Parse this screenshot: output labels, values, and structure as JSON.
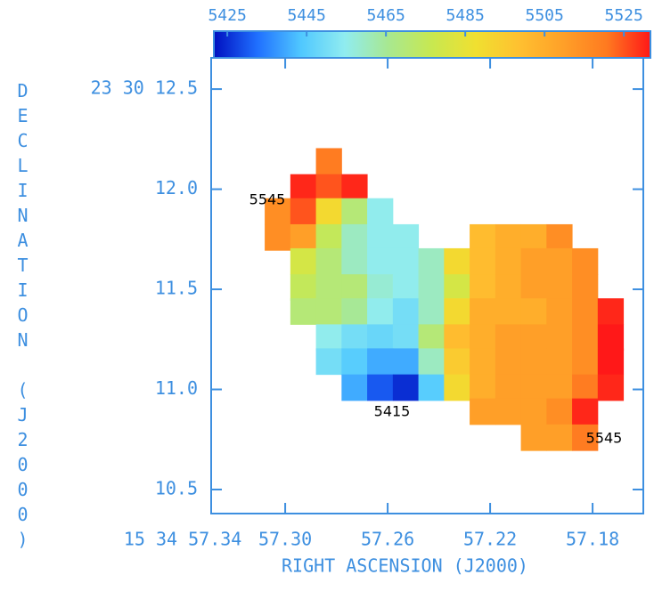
{
  "chart_data": {
    "type": "heatmap",
    "xlabel": "RIGHT ASCENSION (J2000)",
    "ylabel": "DECLINATION (J2000)",
    "xlim": [
      57.3289,
      57.1602
    ],
    "ylim": [
      10.38,
      12.656
    ],
    "xticks": [
      {
        "value": 57.34,
        "label": "15 34 57.34"
      },
      {
        "value": 57.3,
        "label": "57.30"
      },
      {
        "value": 57.26,
        "label": "57.26"
      },
      {
        "value": 57.22,
        "label": "57.22"
      },
      {
        "value": 57.18,
        "label": "57.18"
      }
    ],
    "yticks": [
      {
        "value": 12.5,
        "label": "23 30 12.5"
      },
      {
        "value": 12.0,
        "label": "12.0"
      },
      {
        "value": 11.5,
        "label": "11.5"
      },
      {
        "value": 11.0,
        "label": "11.0"
      },
      {
        "value": 10.5,
        "label": "10.5"
      }
    ],
    "clim": [
      5421.6,
      5531.7
    ],
    "cticks": [
      5425,
      5445,
      5465,
      5485,
      5505,
      5525
    ],
    "colormap": [
      "#0010c0",
      "#2070ff",
      "#50c8ff",
      "#90ecf0",
      "#a8e890",
      "#c8e850",
      "#f0e030",
      "#ffc030",
      "#ffa028",
      "#ff7a20",
      "#ff1818"
    ],
    "x": [
      57.303,
      57.293,
      57.283,
      57.273,
      57.263,
      57.253,
      57.243,
      57.233,
      57.223,
      57.213,
      57.203,
      57.193,
      57.183,
      57.173
    ],
    "y": [
      12.14,
      12.01,
      11.89,
      11.76,
      11.64,
      11.51,
      11.39,
      11.26,
      11.14,
      11.01,
      10.89,
      10.76
    ],
    "values": [
      [
        null,
        null,
        5520,
        null,
        null,
        null,
        null,
        null,
        null,
        null,
        null,
        null,
        null,
        null
      ],
      [
        null,
        5530,
        5525,
        5530,
        null,
        null,
        null,
        null,
        null,
        null,
        null,
        null,
        null,
        null
      ],
      [
        5515,
        5525,
        5490,
        5470,
        5455,
        null,
        null,
        null,
        null,
        null,
        null,
        null,
        null,
        null
      ],
      [
        5515,
        5510,
        5475,
        5460,
        5455,
        5455,
        null,
        null,
        5500,
        5505,
        5505,
        5515,
        null,
        null
      ],
      [
        null,
        5480,
        5470,
        5460,
        5455,
        5455,
        5460,
        5490,
        5500,
        5505,
        5510,
        5510,
        5515,
        null
      ],
      [
        null,
        5475,
        5470,
        5470,
        5458,
        5455,
        5460,
        5480,
        5500,
        5505,
        5510,
        5510,
        5515,
        null
      ],
      [
        null,
        5470,
        5470,
        5465,
        5455,
        5450,
        5460,
        5490,
        5505,
        5505,
        5505,
        5510,
        5515,
        5530
      ],
      [
        null,
        null,
        5455,
        5450,
        5448,
        5450,
        5470,
        5500,
        5505,
        5510,
        5510,
        5510,
        5515,
        5535
      ],
      [
        null,
        null,
        5450,
        5445,
        5440,
        5440,
        5460,
        5495,
        5505,
        5510,
        5510,
        5510,
        5515,
        5535
      ],
      [
        null,
        null,
        null,
        5440,
        5430,
        5425,
        5445,
        5490,
        5505,
        5510,
        5510,
        5510,
        5520,
        5530
      ],
      [
        null,
        null,
        null,
        null,
        null,
        null,
        null,
        null,
        5510,
        5510,
        5510,
        5515,
        5530,
        null
      ],
      [
        null,
        null,
        null,
        null,
        null,
        null,
        null,
        null,
        null,
        null,
        5510,
        5510,
        5520,
        null
      ]
    ],
    "annotations": [
      "5545",
      "5415",
      "5545"
    ]
  }
}
